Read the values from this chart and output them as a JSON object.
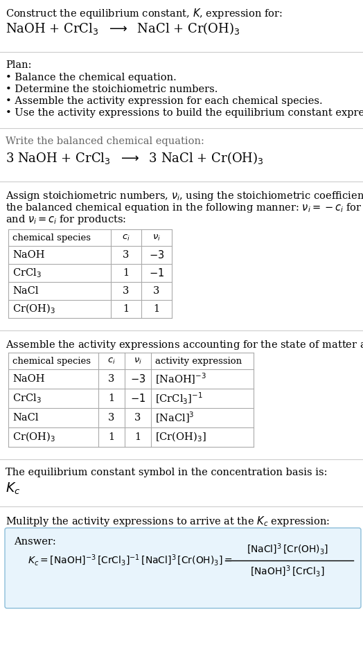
{
  "title_line1": "Construct the equilibrium constant, $K$, expression for:",
  "title_line2": "NaOH + CrCl$_3$  $\\longrightarrow$  NaCl + Cr(OH)$_3$",
  "plan_header": "Plan:",
  "plan_bullets": [
    "• Balance the chemical equation.",
    "• Determine the stoichiometric numbers.",
    "• Assemble the activity expression for each chemical species.",
    "• Use the activity expressions to build the equilibrium constant expression."
  ],
  "balanced_header": "Write the balanced chemical equation:",
  "balanced_eq": "3 NaOH + CrCl$_3$  $\\longrightarrow$  3 NaCl + Cr(OH)$_3$",
  "stoich_intro_lines": [
    "Assign stoichiometric numbers, $\\nu_i$, using the stoichiometric coefficients, $c_i$, from",
    "the balanced chemical equation in the following manner: $\\nu_i = -c_i$ for reactants",
    "and $\\nu_i = c_i$ for products:"
  ],
  "table1_headers": [
    "chemical species",
    "$c_i$",
    "$\\nu_i$"
  ],
  "table1_rows": [
    [
      "NaOH",
      "3",
      "$-3$"
    ],
    [
      "CrCl$_3$",
      "1",
      "$-1$"
    ],
    [
      "NaCl",
      "3",
      "3"
    ],
    [
      "Cr(OH)$_3$",
      "1",
      "1"
    ]
  ],
  "activity_intro": "Assemble the activity expressions accounting for the state of matter and $\\nu_i$:",
  "table2_headers": [
    "chemical species",
    "$c_i$",
    "$\\nu_i$",
    "activity expression"
  ],
  "table2_rows": [
    [
      "NaOH",
      "3",
      "$-3$",
      "[NaOH]$^{-3}$"
    ],
    [
      "CrCl$_3$",
      "1",
      "$-1$",
      "[CrCl$_3$]$^{-1}$"
    ],
    [
      "NaCl",
      "3",
      "3",
      "[NaCl]$^3$"
    ],
    [
      "Cr(OH)$_3$",
      "1",
      "1",
      "[Cr(OH)$_3$]"
    ]
  ],
  "kc_symbol_text": "The equilibrium constant symbol in the concentration basis is:",
  "kc_symbol": "$K_c$",
  "multiply_text": "Mulitply the activity expressions to arrive at the $K_c$ expression:",
  "answer_label": "Answer:",
  "answer_box_color": "#e8f4fc",
  "answer_box_border": "#8bbdd9",
  "bg_color": "#ffffff",
  "text_color": "#000000",
  "table_line_color": "#aaaaaa",
  "section_line_color": "#cccccc",
  "font_size": 10.5,
  "title_eq_fontsize": 13
}
